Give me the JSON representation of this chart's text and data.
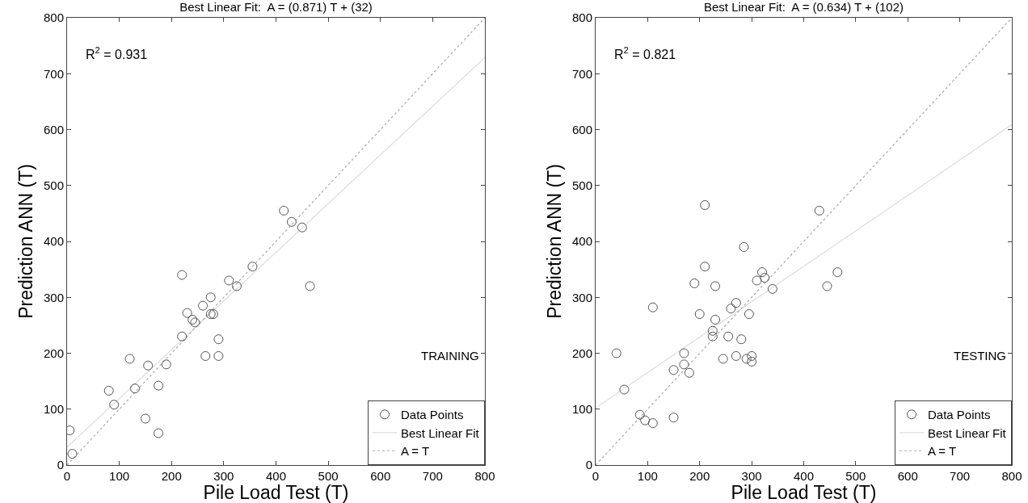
{
  "chart_data": [
    {
      "type": "scatter",
      "title": "Best Linear Fit:  A = (0.871) T + (32)",
      "xlabel": "Pile Load Test (T)",
      "ylabel": "Prediction ANN (T)",
      "annotations": [
        "R$^{2}$ = 0.931",
        "TRAINING"
      ],
      "xlim": [
        0,
        800
      ],
      "ylim": [
        0,
        800
      ],
      "xticks": [
        0,
        100,
        200,
        300,
        400,
        500,
        600,
        700,
        800
      ],
      "yticks": [
        0,
        100,
        200,
        300,
        400,
        500,
        600,
        700,
        800
      ],
      "grid": false,
      "legend": "bottom right",
      "series": [
        {
          "name": "Data Points",
          "type": "scatter",
          "marker": "circle",
          "color": "#555555",
          "x": [
            5,
            10,
            80,
            90,
            130,
            150,
            155,
            175,
            175,
            190,
            220,
            220,
            230,
            240,
            245,
            260,
            265,
            275,
            275,
            280,
            290,
            290,
            310,
            325,
            355,
            415,
            430,
            450,
            465,
            120
          ],
          "values": [
            62,
            20,
            133,
            108,
            137,
            83,
            178,
            142,
            57,
            180,
            230,
            340,
            272,
            260,
            255,
            285,
            195,
            270,
            300,
            270,
            225,
            195,
            330,
            320,
            355,
            455,
            435,
            425,
            320,
            190
          ]
        },
        {
          "name": "Best Linear Fit",
          "type": "line",
          "marker": "none",
          "line_style": "solid",
          "color": "#dddddd",
          "x": [
            0,
            800
          ],
          "values": [
            32,
            729
          ]
        },
        {
          "name": "A = T",
          "type": "line",
          "marker": "none",
          "line_style": "dotted",
          "color": "#aaaaaa",
          "x": [
            0,
            800
          ],
          "values": [
            0,
            800
          ]
        }
      ]
    },
    {
      "type": "scatter",
      "title": "Best Linear Fit:  A = (0.634) T + (102)",
      "xlabel": "Pile Load Test (T)",
      "ylabel": "Prediction ANN (T)",
      "annotations": [
        "R$^{2}$ = 0.821",
        "TESTING"
      ],
      "xlim": [
        0,
        800
      ],
      "ylim": [
        0,
        800
      ],
      "xticks": [
        0,
        100,
        200,
        300,
        400,
        500,
        600,
        700,
        800
      ],
      "yticks": [
        0,
        100,
        200,
        300,
        400,
        500,
        600,
        700,
        800
      ],
      "grid": false,
      "legend": "bottom right",
      "series": [
        {
          "name": "Data Points",
          "type": "scatter",
          "marker": "circle",
          "color": "#555555",
          "x": [
            40,
            55,
            85,
            95,
            110,
            110,
            150,
            150,
            170,
            170,
            180,
            190,
            200,
            210,
            210,
            225,
            225,
            230,
            230,
            245,
            255,
            260,
            270,
            270,
            280,
            285,
            290,
            295,
            300,
            300,
            310,
            320,
            325,
            340,
            430,
            445,
            465
          ],
          "values": [
            200,
            135,
            90,
            80,
            75,
            282,
            170,
            85,
            200,
            180,
            165,
            325,
            270,
            465,
            355,
            240,
            230,
            260,
            320,
            190,
            230,
            280,
            195,
            290,
            225,
            390,
            190,
            270,
            195,
            185,
            330,
            345,
            335,
            315,
            455,
            320,
            345
          ]
        },
        {
          "name": "Best Linear Fit",
          "type": "line",
          "marker": "none",
          "line_style": "solid",
          "color": "#dddddd",
          "x": [
            0,
            800
          ],
          "values": [
            102,
            609
          ]
        },
        {
          "name": "A = T",
          "type": "line",
          "marker": "none",
          "line_style": "dotted",
          "color": "#aaaaaa",
          "x": [
            0,
            800
          ],
          "values": [
            0,
            800
          ]
        }
      ]
    }
  ]
}
